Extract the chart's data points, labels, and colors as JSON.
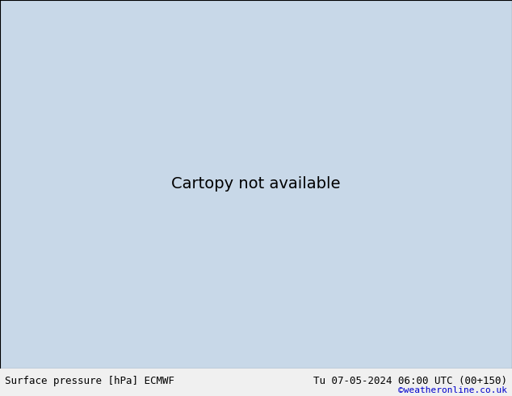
{
  "title_left": "Surface pressure [hPa] ECMWF",
  "title_right": "Tu 07-05-2024 06:00 UTC (00+150)",
  "watermark": "©weatheronline.co.uk",
  "bg_color": "#c8d8e8",
  "land_color": "#b8e8a0",
  "border_color": "#888888",
  "contour_colors": {
    "blue": "#0000cc",
    "red": "#cc0000",
    "black": "#000000"
  },
  "footer_bg": "#f0f0f0",
  "title_fontsize": 9,
  "label_fontsize": 7,
  "figsize": [
    6.34,
    4.9
  ],
  "dpi": 100
}
